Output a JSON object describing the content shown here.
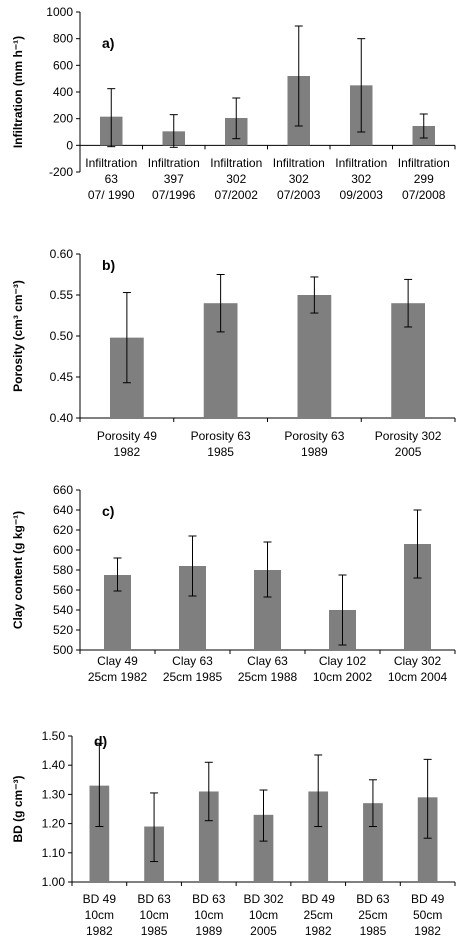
{
  "bar_color": "#7f7f7f",
  "chart_data": [
    {
      "type": "bar",
      "panel_label": "a)",
      "ylabel": "Infiltration (mm h⁻¹)",
      "ylim": [
        -200,
        1000
      ],
      "yticks": [
        -200,
        0,
        200,
        400,
        600,
        800,
        1000
      ],
      "tick_decimals": 0,
      "categories": [
        [
          "Infiltration",
          "63",
          "07/ 1990"
        ],
        [
          "Infiltration",
          "397",
          "07/1996"
        ],
        [
          "Infiltration",
          "302",
          "07/2002"
        ],
        [
          "Infiltration",
          "302",
          "07/2003"
        ],
        [
          "Infiltration",
          "302",
          "09/2003"
        ],
        [
          "Infiltration",
          "299",
          "07/2008"
        ]
      ],
      "values": [
        215,
        105,
        205,
        520,
        450,
        145
      ],
      "error_low": [
        -10,
        -15,
        50,
        145,
        100,
        55
      ],
      "error_high": [
        425,
        230,
        355,
        895,
        800,
        235
      ]
    },
    {
      "type": "bar",
      "panel_label": "b)",
      "ylabel": "Porosity (cm³ cm⁻³)",
      "ylim": [
        0.4,
        0.6
      ],
      "yticks": [
        0.4,
        0.45,
        0.5,
        0.55,
        0.6
      ],
      "tick_decimals": 2,
      "categories": [
        [
          "Porosity 49",
          "1982"
        ],
        [
          "Porosity 63",
          "1985"
        ],
        [
          "Porosity 63",
          "1989"
        ],
        [
          "Porosity 302",
          "2005"
        ]
      ],
      "values": [
        0.498,
        0.54,
        0.55,
        0.54
      ],
      "error_low": [
        0.443,
        0.505,
        0.528,
        0.511
      ],
      "error_high": [
        0.553,
        0.575,
        0.572,
        0.569
      ]
    },
    {
      "type": "bar",
      "panel_label": "c)",
      "ylabel": "Clay content (g kg⁻¹)",
      "ylim": [
        500,
        660
      ],
      "yticks": [
        500,
        520,
        540,
        560,
        580,
        600,
        620,
        640,
        660
      ],
      "tick_decimals": 0,
      "categories": [
        [
          "Clay 49",
          "25cm 1982"
        ],
        [
          "Clay 63",
          "25cm 1985"
        ],
        [
          "Clay 63",
          "25cm 1988"
        ],
        [
          "Clay 102",
          "10cm 2002"
        ],
        [
          "Clay 302",
          "10cm 2004"
        ]
      ],
      "values": [
        575,
        584,
        580,
        540,
        606
      ],
      "error_low": [
        559,
        554,
        553,
        505,
        572
      ],
      "error_high": [
        592,
        614,
        608,
        575,
        640
      ]
    },
    {
      "type": "bar",
      "panel_label": "d)",
      "ylabel": "BD (g cm⁻³)",
      "ylim": [
        1.0,
        1.5
      ],
      "yticks": [
        1.0,
        1.1,
        1.2,
        1.3,
        1.4,
        1.5
      ],
      "tick_decimals": 2,
      "categories": [
        [
          "BD 49",
          "10cm",
          "1982"
        ],
        [
          "BD 63",
          "10cm",
          "1985"
        ],
        [
          "BD 63",
          "10cm",
          "1989"
        ],
        [
          "BD 302",
          "10cm",
          "2005"
        ],
        [
          "BD 49",
          "25cm",
          "1982"
        ],
        [
          "BD 63",
          "25cm",
          "1985"
        ],
        [
          "BD 49",
          "50cm",
          "1982"
        ]
      ],
      "values": [
        1.33,
        1.19,
        1.31,
        1.23,
        1.31,
        1.27,
        1.29
      ],
      "error_low": [
        1.19,
        1.07,
        1.21,
        1.14,
        1.19,
        1.19,
        1.15
      ],
      "error_high": [
        1.475,
        1.305,
        1.41,
        1.315,
        1.435,
        1.35,
        1.42
      ]
    }
  ]
}
